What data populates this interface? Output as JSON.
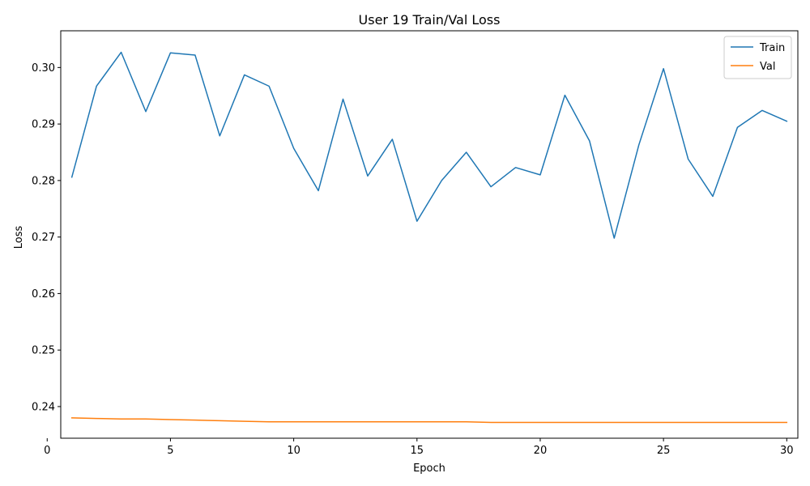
{
  "chart_data": {
    "type": "line",
    "title": "User 19 Train/Val Loss",
    "xlabel": "Epoch",
    "ylabel": "Loss",
    "x": [
      1,
      2,
      3,
      4,
      5,
      6,
      7,
      8,
      9,
      10,
      11,
      12,
      13,
      14,
      15,
      16,
      17,
      18,
      19,
      20,
      21,
      22,
      23,
      24,
      25,
      26,
      27,
      28,
      29,
      30
    ],
    "xlim": [
      0.55,
      30.45
    ],
    "ylim": [
      0.2344,
      0.3065
    ],
    "xticks": [
      0,
      5,
      10,
      15,
      20,
      25,
      30
    ],
    "xtick_labels": [
      "0",
      "5",
      "10",
      "15",
      "20",
      "25",
      "30"
    ],
    "yticks": [
      0.24,
      0.25,
      0.26,
      0.27,
      0.28,
      0.29,
      0.3
    ],
    "ytick_labels": [
      "0.24",
      "0.25",
      "0.26",
      "0.27",
      "0.28",
      "0.29",
      "0.30"
    ],
    "grid": false,
    "legend_position": "top-right",
    "series": [
      {
        "name": "Train",
        "color": "#1f77b4",
        "values": [
          0.2806,
          0.2967,
          0.3027,
          0.2922,
          0.3026,
          0.3022,
          0.2879,
          0.2987,
          0.2967,
          0.2857,
          0.2782,
          0.2944,
          0.2808,
          0.2873,
          0.2728,
          0.28,
          0.285,
          0.2789,
          0.2823,
          0.281,
          0.2951,
          0.287,
          0.2698,
          0.2863,
          0.2998,
          0.2838,
          0.2772,
          0.2894,
          0.2924,
          0.2905
        ]
      },
      {
        "name": "Val",
        "color": "#ff7f0e",
        "values": [
          0.238,
          0.2379,
          0.2378,
          0.2378,
          0.2377,
          0.2376,
          0.2375,
          0.2374,
          0.2373,
          0.2373,
          0.2373,
          0.2373,
          0.2373,
          0.2373,
          0.2373,
          0.2373,
          0.2373,
          0.2372,
          0.2372,
          0.2372,
          0.2372,
          0.2372,
          0.2372,
          0.2372,
          0.2372,
          0.2372,
          0.2372,
          0.2372,
          0.2372,
          0.2372
        ]
      }
    ]
  }
}
